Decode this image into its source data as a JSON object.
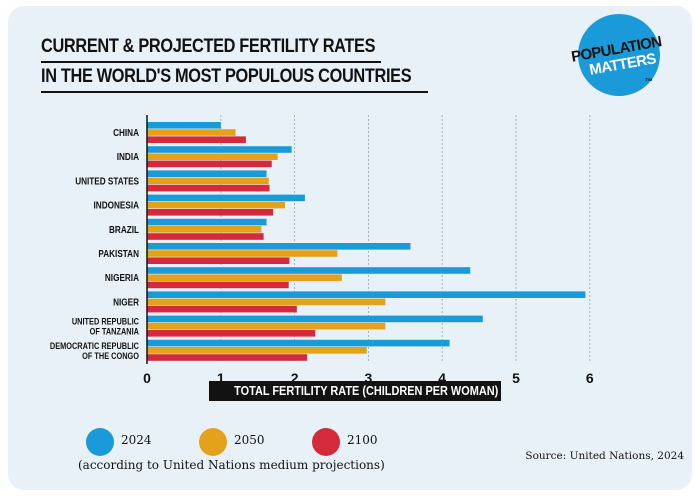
{
  "title": {
    "line1": "CURRENT & PROJECTED FERTILITY RATES",
    "line2": "IN THE WORLD'S MOST POPULOUS COUNTRIES"
  },
  "logo": {
    "line1": "POPULATION",
    "line2": "MATTERS",
    "tm": "™"
  },
  "legend": {
    "items": [
      {
        "label": "2024",
        "color": "#1a9ad8"
      },
      {
        "label": "2050",
        "color": "#e3a21a"
      },
      {
        "label": "2100",
        "color": "#d42a3c"
      }
    ],
    "note": "(according to United Nations medium projections)"
  },
  "source": "Source: United Nations, 2024",
  "chart_data": {
    "type": "bar",
    "orientation": "horizontal",
    "xlabel": "TOTAL FERTILITY RATE (CHILDREN PER WOMAN)",
    "xlim": [
      0,
      6
    ],
    "xticks": [
      "0",
      "1",
      "2",
      "3",
      "4",
      "5",
      "6"
    ],
    "grid": "vertical dashed",
    "categories": [
      [
        "CHINA"
      ],
      [
        "INDIA"
      ],
      [
        "UNITED STATES"
      ],
      [
        "INDONESIA"
      ],
      [
        "BRAZIL"
      ],
      [
        "PAKISTAN"
      ],
      [
        "NIGERIA"
      ],
      [
        "NIGER"
      ],
      [
        "UNITED REPUBLIC",
        "OF TANZANIA"
      ],
      [
        "DEMOCRATIC REPUBLIC",
        "OF THE CONGO"
      ]
    ],
    "series": [
      {
        "name": "2024",
        "color": "#1a9ad8",
        "values": [
          1.0,
          1.96,
          1.62,
          2.14,
          1.62,
          3.57,
          4.38,
          5.94,
          4.55,
          4.1
        ]
      },
      {
        "name": "2050",
        "color": "#e3a21a",
        "values": [
          1.2,
          1.77,
          1.65,
          1.87,
          1.55,
          2.58,
          2.64,
          3.23,
          3.23,
          2.98
        ]
      },
      {
        "name": "2100",
        "color": "#d42a3c",
        "values": [
          1.34,
          1.69,
          1.66,
          1.71,
          1.58,
          1.93,
          1.92,
          2.03,
          2.28,
          2.17
        ]
      }
    ]
  }
}
